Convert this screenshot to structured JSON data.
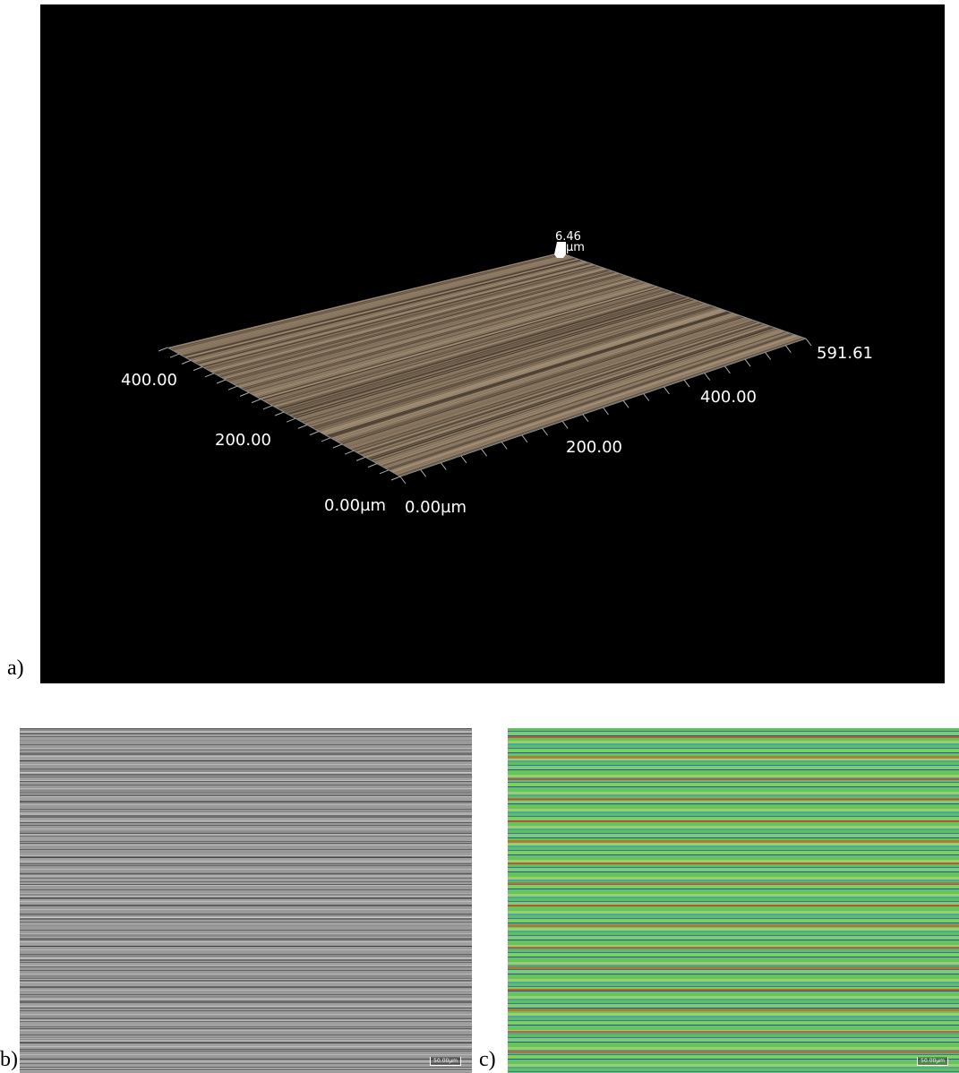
{
  "panels": [
    {
      "label": "a)",
      "axes": {
        "z_max": "6.46",
        "z_unit": "µm",
        "y_ticks": [
          "400.00",
          "200.00",
          "0.00µm"
        ],
        "x_ticks": [
          "0.00µm",
          "200.00",
          "400.00",
          "591.61"
        ]
      }
    },
    {
      "label": "b)",
      "scale_bar": "50.00µm"
    },
    {
      "label": "c)",
      "scale_bar": "50.00µm"
    }
  ]
}
